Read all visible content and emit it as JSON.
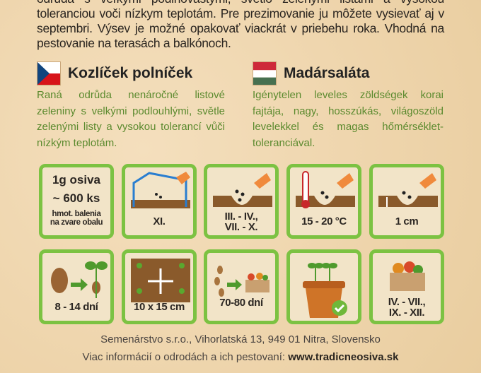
{
  "intro_text": "odrůda s veľkými podlhovastými, svetlo zelenými listami a vysokou toleranciou voči nízkym teplotám. Pre prezimovanie ju môžete vysievať aj v septembri. Výsev je možné opakovať viackrát v priebehu roka. Vhodná na pestovanie na terasách a balkónoch.",
  "languages": [
    {
      "flag": "czech-flag",
      "title": "Kozlíček polníček",
      "description": "Raná odrůda nenáročné listové zeleniny s velkými podlouhlými, světle zelenými listy a vysokou tolerancí vůči nízkým teplotám."
    },
    {
      "flag": "hungarian-flag",
      "title": "Madársaláta",
      "description": "Igénytelen leveles zöldségek korai fajtája, nagy, hosszúkás, világoszöld levelekkel és magas hőmérséklet-toleranciával."
    }
  ],
  "tiles": {
    "seeds": {
      "line1": "1g osiva",
      "line2": "~ 600 ks",
      "line3": "hmot. balenia",
      "line4": "na zvare obalu"
    },
    "greenhouse": {
      "icon": "greenhouse-sowing-icon",
      "label": "XI."
    },
    "sowing": {
      "icon": "outdoor-sowing-icon",
      "label1": "III. - IV.,",
      "label2": "VII. - X."
    },
    "temperature": {
      "icon": "thermometer-icon",
      "label": "15 - 20 °C"
    },
    "depth": {
      "icon": "sowing-depth-icon",
      "label": "1 cm"
    },
    "germination": {
      "icon": "germination-icon",
      "label": "8 - 14 dní"
    },
    "spacing": {
      "icon": "plant-spacing-icon",
      "label": "10 x 15 cm"
    },
    "harvest_time": {
      "icon": "harvest-time-icon",
      "label": "70-80 dní"
    },
    "pot": {
      "icon": "pot-suitable-icon"
    },
    "harvest": {
      "icon": "harvest-basket-icon",
      "label1": "IV. - VII.,",
      "label2": "IX. - XII."
    }
  },
  "colors": {
    "tile_border": "#7cc242",
    "description_text": "#5b8a2e",
    "soil": "#8a5a2b"
  },
  "footer": {
    "address": "Semenárstvo s.r.o., Vihorlatská 13, 949 01 Nitra, Slovensko",
    "info_prefix": "Viac informácií o odrodách a ich pestovaní: ",
    "website": "www.tradicneosiva.sk"
  }
}
